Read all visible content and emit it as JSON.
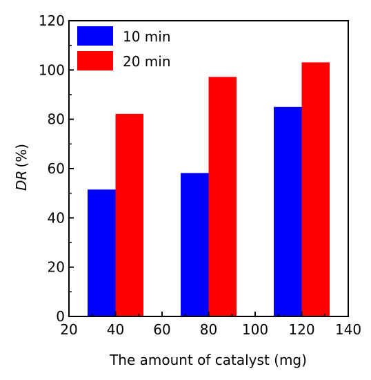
{
  "chart_data": {
    "type": "bar",
    "x": [
      40,
      80,
      120
    ],
    "series": [
      {
        "name": "10 min",
        "color": "#0000ff",
        "values": [
          51.5,
          58.2,
          85.0
        ]
      },
      {
        "name": "20 min",
        "color": "#ff0000",
        "values": [
          82.2,
          97.2,
          103.1
        ]
      }
    ],
    "xlabel": "The amount of catalyst (mg)",
    "ylabel_italic": "DR",
    "ylabel_unit": "(%)",
    "xlim": [
      20,
      140
    ],
    "ylim": [
      0,
      120
    ],
    "xticks": [
      20,
      40,
      60,
      80,
      100,
      120,
      140
    ],
    "yticks": [
      0,
      20,
      40,
      60,
      80,
      100,
      120
    ],
    "bar_width": 12,
    "grid": false,
    "legend_position": "top-left"
  }
}
